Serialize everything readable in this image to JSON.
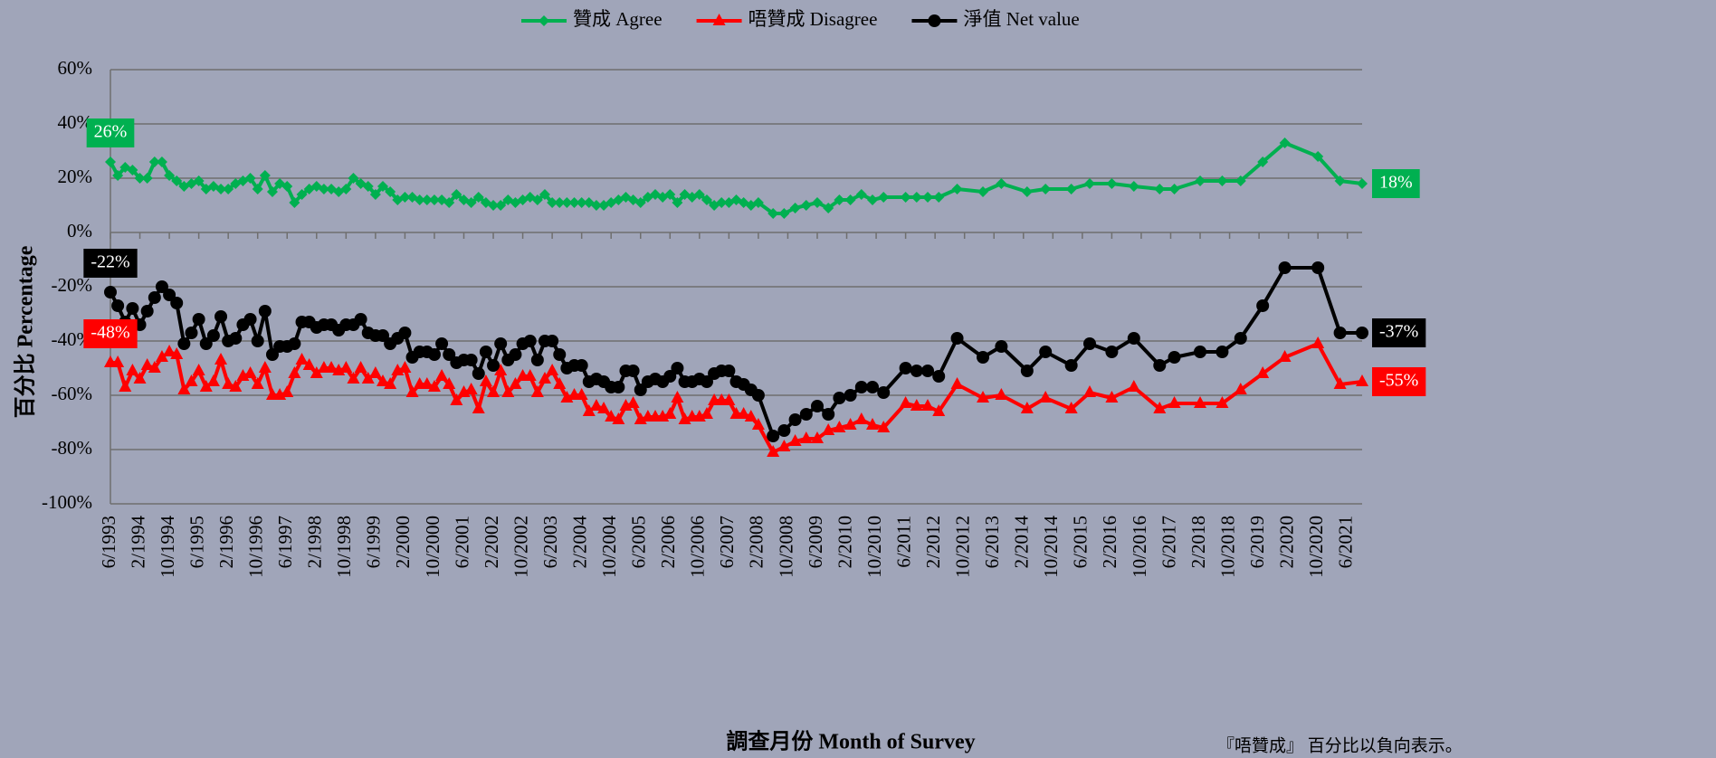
{
  "chart_data": {
    "type": "line",
    "y_title": "百分比 Percentage",
    "x_title": "調查月份 Month of Survey",
    "note": "『唔贊成』 百分比以負向表示。",
    "legend": "top",
    "grid": true,
    "x": [
      "6/1993",
      "8/1993",
      "10/1993",
      "12/1993",
      "2/1994",
      "4/1994",
      "6/1994",
      "8/1994",
      "10/1994",
      "12/1994",
      "2/1995",
      "4/1995",
      "6/1995",
      "8/1995",
      "10/1995",
      "12/1995",
      "2/1996",
      "4/1996",
      "6/1996",
      "8/1996",
      "10/1996",
      "12/1996",
      "2/1997",
      "4/1997",
      "6/1997",
      "8/1997",
      "10/1997",
      "12/1997",
      "2/1998",
      "4/1998",
      "6/1998",
      "8/1998",
      "10/1998",
      "12/1998",
      "2/1999",
      "4/1999",
      "6/1999",
      "8/1999",
      "10/1999",
      "12/1999",
      "2/2000",
      "4/2000",
      "6/2000",
      "8/2000",
      "10/2000",
      "12/2000",
      "2/2001",
      "4/2001",
      "6/2001",
      "8/2001",
      "10/2001",
      "12/2001",
      "2/2002",
      "4/2002",
      "6/2002",
      "8/2002",
      "10/2002",
      "12/2002",
      "2/2003",
      "4/2003",
      "6/2003",
      "8/2003",
      "10/2003",
      "12/2003",
      "2/2004",
      "4/2004",
      "6/2004",
      "8/2004",
      "10/2004",
      "12/2004",
      "2/2005",
      "4/2005",
      "6/2005",
      "8/2005",
      "10/2005",
      "12/2005",
      "2/2006",
      "4/2006",
      "6/2006",
      "8/2006",
      "10/2006",
      "12/2006",
      "2/2007",
      "4/2007",
      "6/2007",
      "8/2007",
      "10/2007",
      "12/2007",
      "2/2008",
      "6/2008",
      "9/2008",
      "12/2008",
      "3/2009",
      "6/2009",
      "9/2009",
      "12/2009",
      "3/2010",
      "6/2010",
      "9/2010",
      "12/2010",
      "6/2011",
      "9/2011",
      "12/2011",
      "3/2012",
      "8/2012",
      "3/2013",
      "8/2013",
      "3/2014",
      "8/2014",
      "3/2015",
      "8/2015",
      "2/2016",
      "8/2016",
      "3/2017",
      "7/2017",
      "2/2018",
      "8/2018",
      "1/2019",
      "7/2019",
      "1/2020",
      "10/2020",
      "4/2021",
      "10/2021"
    ],
    "series": [
      {
        "name": "贊成 Agree",
        "color": "#00b050",
        "marker": "diamond",
        "values": [
          26,
          21,
          24,
          23,
          20,
          20,
          26,
          26,
          21,
          19,
          17,
          18,
          19,
          16,
          17,
          16,
          16,
          18,
          19,
          20,
          16,
          21,
          15,
          18,
          17,
          11,
          14,
          16,
          17,
          16,
          16,
          15,
          16,
          20,
          18,
          17,
          14,
          17,
          15,
          12,
          13,
          13,
          12,
          12,
          12,
          12,
          11,
          14,
          12,
          11,
          13,
          11,
          10,
          10,
          12,
          11,
          12,
          13,
          12,
          14,
          11,
          11,
          11,
          11,
          11,
          11,
          10,
          10,
          11,
          12,
          13,
          12,
          11,
          13,
          14,
          13,
          14,
          11,
          14,
          13,
          14,
          12,
          10,
          11,
          11,
          12,
          11,
          10,
          11,
          7,
          7,
          9,
          10,
          11,
          9,
          12,
          12,
          14,
          12,
          13,
          13,
          13,
          13,
          13,
          16,
          15,
          18,
          15,
          16,
          16,
          18,
          18,
          17,
          16,
          16,
          19,
          19,
          19,
          26,
          33,
          28,
          19,
          18
        ],
        "value_labels": [
          "26%",
          null,
          null,
          null,
          null,
          null,
          null,
          null,
          null,
          null,
          null,
          null,
          null,
          null,
          null,
          null,
          null,
          null,
          null,
          null,
          null,
          null,
          null,
          null,
          null,
          null,
          null,
          null,
          null,
          null,
          null,
          null,
          null,
          null,
          null,
          null,
          null,
          null,
          null,
          null,
          null,
          null,
          null,
          null,
          null,
          null,
          null,
          null,
          null,
          null,
          null,
          null,
          null,
          null,
          null,
          null,
          null,
          null,
          null,
          null,
          null,
          null,
          null,
          null,
          null,
          null,
          null,
          null,
          null,
          null,
          null,
          null,
          null,
          null,
          null,
          null,
          null,
          null,
          null,
          null,
          null,
          null,
          null,
          null,
          null,
          null,
          null,
          null,
          null,
          null,
          null,
          null,
          null,
          null,
          null,
          null,
          null,
          null,
          null,
          null,
          null,
          null,
          null,
          null,
          null,
          null,
          null,
          null,
          null,
          null,
          null,
          null,
          null,
          null,
          null,
          null,
          null,
          null,
          null,
          null,
          null,
          null,
          "18%"
        ]
      },
      {
        "name": "唔贊成 Disagree",
        "color": "#ff0000",
        "marker": "triangle",
        "values": [
          -48,
          -48,
          -57,
          -51,
          -54,
          -49,
          -50,
          -46,
          -44,
          -45,
          -58,
          -55,
          -51,
          -57,
          -55,
          -47,
          -56,
          -57,
          -53,
          -52,
          -56,
          -50,
          -60,
          -60,
          -59,
          -52,
          -47,
          -49,
          -52,
          -50,
          -50,
          -51,
          -50,
          -54,
          -50,
          -54,
          -52,
          -55,
          -56,
          -51,
          -50,
          -59,
          -56,
          -56,
          -57,
          -53,
          -56,
          -62,
          -59,
          -58,
          -65,
          -55,
          -59,
          -51,
          -59,
          -56,
          -53,
          -53,
          -59,
          -54,
          -51,
          -56,
          -61,
          -60,
          -60,
          -66,
          -64,
          -65,
          -68,
          -69,
          -64,
          -63,
          -69,
          -68,
          -68,
          -68,
          -67,
          -61,
          -69,
          -68,
          -68,
          -67,
          -62,
          -62,
          -62,
          -67,
          -67,
          -68,
          -71,
          -81,
          -79,
          -77,
          -76,
          -76,
          -73,
          -72,
          -71,
          -69,
          -71,
          -72,
          -63,
          -64,
          -64,
          -66,
          -56,
          -61,
          -60,
          -65,
          -61,
          -65,
          -59,
          -61,
          -57,
          -65,
          -63,
          -63,
          -63,
          -58,
          -52,
          -46,
          -41,
          -56,
          -55
        ],
        "value_labels": [
          "-48%",
          null,
          null,
          null,
          null,
          null,
          null,
          null,
          null,
          null,
          null,
          null,
          null,
          null,
          null,
          null,
          null,
          null,
          null,
          null,
          null,
          null,
          null,
          null,
          null,
          null,
          null,
          null,
          null,
          null,
          null,
          null,
          null,
          null,
          null,
          null,
          null,
          null,
          null,
          null,
          null,
          null,
          null,
          null,
          null,
          null,
          null,
          null,
          null,
          null,
          null,
          null,
          null,
          null,
          null,
          null,
          null,
          null,
          null,
          null,
          null,
          null,
          null,
          null,
          null,
          null,
          null,
          null,
          null,
          null,
          null,
          null,
          null,
          null,
          null,
          null,
          null,
          null,
          null,
          null,
          null,
          null,
          null,
          null,
          null,
          null,
          null,
          null,
          null,
          null,
          null,
          null,
          null,
          null,
          null,
          null,
          null,
          null,
          null,
          null,
          null,
          null,
          null,
          null,
          null,
          null,
          null,
          null,
          null,
          null,
          null,
          null,
          null,
          null,
          null,
          null,
          null,
          null,
          null,
          null,
          null,
          null,
          "-55%"
        ]
      },
      {
        "name": "淨值 Net value",
        "color": "#000000",
        "marker": "circle",
        "values": [
          -22,
          -27,
          -33,
          -28,
          -34,
          -29,
          -24,
          -20,
          -23,
          -26,
          -41,
          -37,
          -32,
          -41,
          -38,
          -31,
          -40,
          -39,
          -34,
          -32,
          -40,
          -29,
          -45,
          -42,
          -42,
          -41,
          -33,
          -33,
          -35,
          -34,
          -34,
          -36,
          -34,
          -34,
          -32,
          -37,
          -38,
          -38,
          -41,
          -39,
          -37,
          -46,
          -44,
          -44,
          -45,
          -41,
          -45,
          -48,
          -47,
          -47,
          -52,
          -44,
          -49,
          -41,
          -47,
          -45,
          -41,
          -40,
          -47,
          -40,
          -40,
          -45,
          -50,
          -49,
          -49,
          -55,
          -54,
          -55,
          -57,
          -57,
          -51,
          -51,
          -58,
          -55,
          -54,
          -55,
          -53,
          -50,
          -55,
          -55,
          -54,
          -55,
          -52,
          -51,
          -51,
          -55,
          -56,
          -58,
          -60,
          -75,
          -73,
          -69,
          -67,
          -64,
          -67,
          -61,
          -60,
          -57,
          -57,
          -59,
          -50,
          -51,
          -51,
          -53,
          -39,
          -46,
          -42,
          -51,
          -44,
          -49,
          -41,
          -44,
          -39,
          -49,
          -46,
          -44,
          -44,
          -39,
          -27,
          -13,
          -13,
          -37,
          -37
        ],
        "value_labels": [
          "-22%",
          null,
          null,
          null,
          null,
          null,
          null,
          null,
          null,
          null,
          null,
          null,
          null,
          null,
          null,
          null,
          null,
          null,
          null,
          null,
          null,
          null,
          null,
          null,
          null,
          null,
          null,
          null,
          null,
          null,
          null,
          null,
          null,
          null,
          null,
          null,
          null,
          null,
          null,
          null,
          null,
          null,
          null,
          null,
          null,
          null,
          null,
          null,
          null,
          null,
          null,
          null,
          null,
          null,
          null,
          null,
          null,
          null,
          null,
          null,
          null,
          null,
          null,
          null,
          null,
          null,
          null,
          null,
          null,
          null,
          null,
          null,
          null,
          null,
          null,
          null,
          null,
          null,
          null,
          null,
          null,
          null,
          null,
          null,
          null,
          null,
          null,
          null,
          null,
          null,
          null,
          null,
          null,
          null,
          null,
          null,
          null,
          null,
          null,
          null,
          null,
          null,
          null,
          null,
          null,
          null,
          null,
          null,
          null,
          null,
          null,
          null,
          null,
          null,
          null,
          null,
          null,
          null,
          null,
          null,
          null,
          null,
          "-37%"
        ]
      }
    ],
    "xlim": [
      "6/1993",
      "10/2021"
    ],
    "xticks": [
      "6/1993",
      "2/1994",
      "10/1994",
      "6/1995",
      "2/1996",
      "10/1996",
      "6/1997",
      "2/1998",
      "10/1998",
      "6/1999",
      "2/2000",
      "10/2000",
      "6/2001",
      "2/2002",
      "10/2002",
      "6/2003",
      "2/2004",
      "10/2004",
      "6/2005",
      "2/2006",
      "10/2006",
      "6/2007",
      "2/2008",
      "10/2008",
      "6/2009",
      "2/2010",
      "10/2010",
      "6/2011",
      "2/2012",
      "10/2012",
      "6/2013",
      "2/2014",
      "10/2014",
      "6/2015",
      "2/2016",
      "10/2016",
      "6/2017",
      "2/2018",
      "10/2018",
      "6/2019",
      "2/2020",
      "10/2020",
      "6/2021"
    ],
    "ylim": [
      -100,
      60
    ],
    "yticks": [
      {
        "value": -100,
        "label": "-100%"
      },
      {
        "value": -80,
        "label": "-80%"
      },
      {
        "value": -60,
        "label": "-60%"
      },
      {
        "value": -40,
        "label": "-40%"
      },
      {
        "value": -20,
        "label": "-20%"
      },
      {
        "value": 0,
        "label": "0%"
      },
      {
        "value": 20,
        "label": "20%"
      },
      {
        "value": 40,
        "label": "40%"
      },
      {
        "value": 60,
        "label": "60%"
      }
    ]
  }
}
